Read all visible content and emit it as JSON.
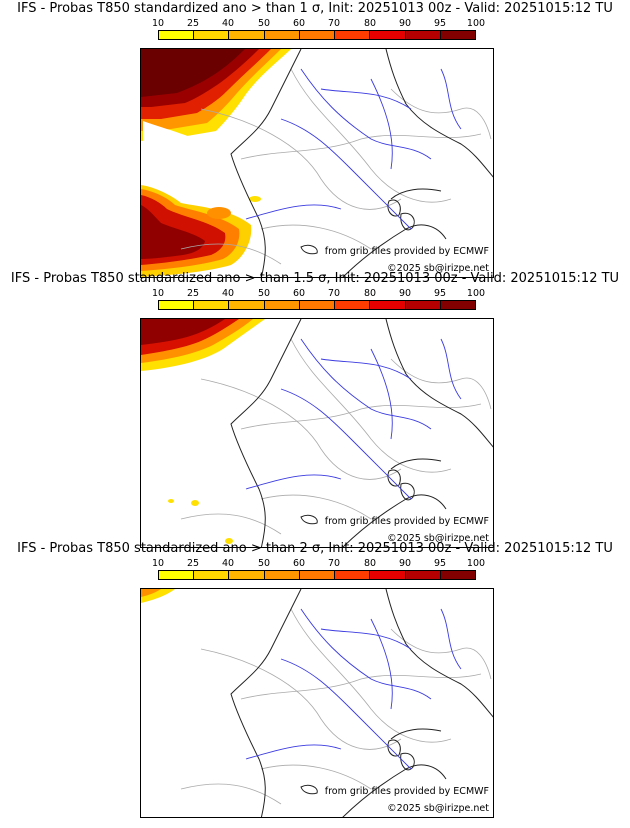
{
  "colorbar": {
    "ticks": [
      "10",
      "25",
      "40",
      "50",
      "60",
      "70",
      "80",
      "90",
      "95",
      "100"
    ],
    "colors": [
      "#ffff00",
      "#ffd800",
      "#ffb400",
      "#ff9600",
      "#ff7800",
      "#ff3c00",
      "#e60000",
      "#b40000",
      "#820000"
    ]
  },
  "panels": [
    {
      "title": "IFS - Probas T850  standardized ano > than 1 σ, Init: 20251013 00z - Valid: 20251015:12 TU",
      "threshold": "1 σ",
      "credit": "from grib files provided by ECMWF",
      "copyright": "©2025 sb@irizpe.net"
    },
    {
      "title": "IFS - Probas T850  standardized ano > than 1.5 σ, Init: 20251013 00z - Valid: 20251015:12 TU",
      "threshold": "1.5 σ",
      "credit": "from grib files provided by ECMWF",
      "copyright": "©2025 sb@irizpe.net"
    },
    {
      "title": "IFS - Probas T850  standardized ano > than 2 σ, Init: 20251013 00z - Valid: 20251015:12 TU",
      "threshold": "2 σ",
      "credit": "from grib files provided by ECMWF",
      "copyright": "©2025 sb@irizpe.net"
    }
  ]
}
